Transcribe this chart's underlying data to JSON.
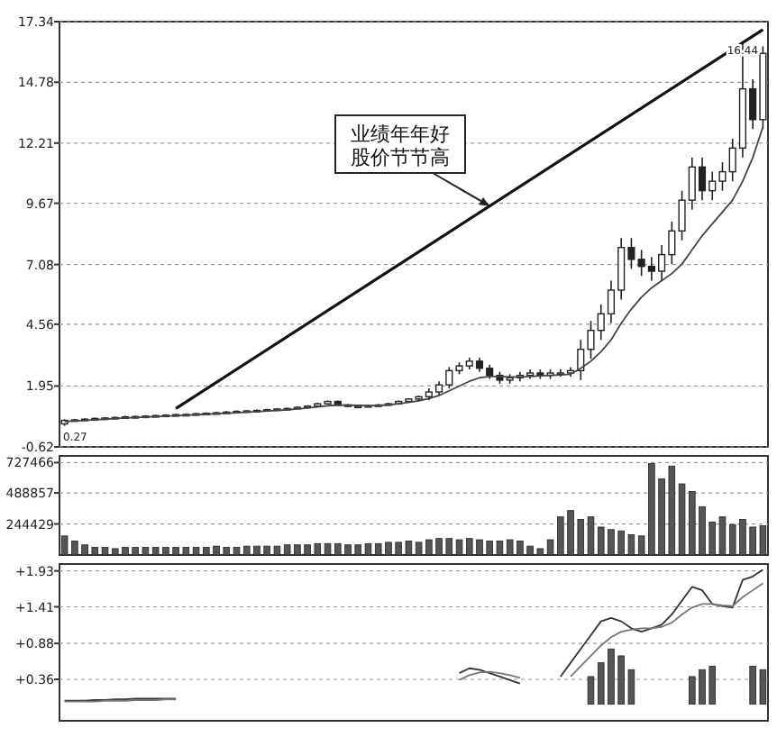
{
  "chart_data": [
    {
      "type": "candlestick",
      "categories": [
        null,
        null,
        null,
        null,
        null,
        null,
        null,
        null,
        null,
        null,
        null,
        null,
        null,
        null,
        null,
        null,
        null,
        null,
        null,
        null,
        null,
        null,
        null,
        null,
        null,
        null,
        null,
        null,
        null,
        null,
        null,
        null,
        null,
        null,
        null,
        null,
        null,
        null,
        null,
        null,
        null,
        null,
        null,
        null,
        null,
        null,
        null,
        null,
        null,
        null,
        null,
        null,
        null,
        null,
        null,
        null,
        null,
        null,
        null,
        null,
        null,
        null,
        null,
        null,
        null,
        null,
        null,
        null,
        null,
        null
      ],
      "ohlc": [
        [
          0.35,
          0.55,
          0.27,
          0.5
        ],
        [
          0.5,
          0.56,
          0.46,
          0.52
        ],
        [
          0.52,
          0.59,
          0.48,
          0.55
        ],
        [
          0.55,
          0.62,
          0.51,
          0.58
        ],
        [
          0.58,
          0.64,
          0.54,
          0.6
        ],
        [
          0.6,
          0.66,
          0.56,
          0.62
        ],
        [
          0.62,
          0.69,
          0.58,
          0.65
        ],
        [
          0.65,
          0.7,
          0.61,
          0.66
        ],
        [
          0.66,
          0.72,
          0.62,
          0.68
        ],
        [
          0.68,
          0.74,
          0.64,
          0.7
        ],
        [
          0.7,
          0.76,
          0.66,
          0.72
        ],
        [
          0.72,
          0.78,
          0.68,
          0.74
        ],
        [
          0.74,
          0.79,
          0.7,
          0.75
        ],
        [
          0.75,
          0.82,
          0.71,
          0.78
        ],
        [
          0.78,
          0.84,
          0.74,
          0.8
        ],
        [
          0.8,
          0.86,
          0.76,
          0.82
        ],
        [
          0.82,
          0.89,
          0.78,
          0.85
        ],
        [
          0.85,
          0.92,
          0.81,
          0.88
        ],
        [
          0.88,
          0.94,
          0.84,
          0.9
        ],
        [
          0.9,
          0.96,
          0.86,
          0.92
        ],
        [
          0.92,
          0.99,
          0.88,
          0.95
        ],
        [
          0.95,
          1.02,
          0.91,
          0.98
        ],
        [
          0.98,
          1.04,
          0.94,
          1.0
        ],
        [
          1.0,
          1.09,
          0.96,
          1.05
        ],
        [
          1.05,
          1.14,
          1.01,
          1.1
        ],
        [
          1.1,
          1.24,
          1.06,
          1.2
        ],
        [
          1.2,
          1.34,
          1.16,
          1.3
        ],
        [
          1.3,
          1.34,
          1.11,
          1.15
        ],
        [
          1.15,
          1.19,
          1.06,
          1.1
        ],
        [
          1.1,
          1.14,
          1.06,
          1.1
        ],
        [
          1.1,
          1.16,
          1.06,
          1.12
        ],
        [
          1.12,
          1.19,
          1.08,
          1.15
        ],
        [
          1.15,
          1.24,
          1.11,
          1.2
        ],
        [
          1.2,
          1.34,
          1.16,
          1.3
        ],
        [
          1.3,
          1.44,
          1.26,
          1.4
        ],
        [
          1.4,
          1.54,
          1.36,
          1.5
        ],
        [
          1.5,
          1.85,
          1.35,
          1.7
        ],
        [
          1.7,
          2.15,
          1.55,
          2.0
        ],
        [
          2.0,
          2.75,
          1.85,
          2.6
        ],
        [
          2.6,
          2.95,
          2.45,
          2.8
        ],
        [
          2.8,
          3.15,
          2.65,
          3.0
        ],
        [
          3.0,
          3.15,
          2.55,
          2.7
        ],
        [
          2.7,
          2.85,
          2.25,
          2.4
        ],
        [
          2.4,
          2.55,
          2.05,
          2.2
        ],
        [
          2.2,
          2.45,
          2.05,
          2.3
        ],
        [
          2.3,
          2.55,
          2.15,
          2.4
        ],
        [
          2.4,
          2.65,
          2.25,
          2.5
        ],
        [
          2.5,
          2.65,
          2.25,
          2.4
        ],
        [
          2.4,
          2.65,
          2.25,
          2.5
        ],
        [
          2.5,
          2.65,
          2.35,
          2.5
        ],
        [
          2.5,
          2.75,
          2.35,
          2.6
        ],
        [
          2.6,
          3.9,
          2.2,
          3.5
        ],
        [
          3.5,
          4.7,
          3.1,
          4.3
        ],
        [
          4.3,
          5.4,
          3.9,
          5.0
        ],
        [
          5.0,
          6.4,
          4.6,
          6.0
        ],
        [
          6.0,
          8.2,
          5.6,
          7.8
        ],
        [
          7.8,
          8.2,
          6.9,
          7.3
        ],
        [
          7.3,
          7.7,
          6.6,
          7.0
        ],
        [
          7.0,
          7.4,
          6.4,
          6.8
        ],
        [
          6.8,
          7.9,
          6.4,
          7.5
        ],
        [
          7.5,
          8.9,
          7.1,
          8.5
        ],
        [
          8.5,
          10.2,
          8.1,
          9.8
        ],
        [
          9.8,
          11.6,
          9.4,
          11.2
        ],
        [
          11.2,
          11.6,
          9.8,
          10.2
        ],
        [
          10.2,
          11.0,
          9.8,
          10.6
        ],
        [
          10.6,
          11.4,
          10.2,
          11.0
        ],
        [
          11.0,
          12.4,
          10.6,
          12.0
        ],
        [
          12.0,
          16.44,
          11.6,
          14.5
        ],
        [
          14.5,
          14.9,
          12.8,
          13.2
        ],
        [
          13.2,
          16.3,
          12.8,
          16.0
        ]
      ],
      "color": "#222222",
      "series": [
        {
          "type": "line",
          "color": "#444444",
          "values": [
            0.45,
            0.48,
            0.5,
            0.53,
            0.55,
            0.58,
            0.6,
            0.62,
            0.64,
            0.66,
            0.68,
            0.7,
            0.72,
            0.74,
            0.76,
            0.78,
            0.8,
            0.82,
            0.85,
            0.87,
            0.9,
            0.92,
            0.95,
            0.98,
            1.02,
            1.07,
            1.12,
            1.14,
            1.14,
            1.13,
            1.12,
            1.13,
            1.15,
            1.2,
            1.26,
            1.33,
            1.42,
            1.55,
            1.75,
            1.95,
            2.15,
            2.3,
            2.35,
            2.35,
            2.33,
            2.33,
            2.35,
            2.38,
            2.4,
            2.42,
            2.45,
            2.7,
            3.0,
            3.4,
            3.9,
            4.6,
            5.2,
            5.7,
            6.1,
            6.4,
            6.7,
            7.1,
            7.7,
            8.3,
            8.8,
            9.3,
            9.8,
            10.6,
            11.6,
            12.9
          ]
        },
        {
          "type": "line",
          "color": "#111111",
          "values": [
            null,
            null,
            null,
            null,
            null,
            null,
            null,
            null,
            null,
            null,
            null,
            1.0,
            null,
            null,
            null,
            null,
            null,
            null,
            null,
            null,
            null,
            null,
            null,
            null,
            null,
            null,
            null,
            null,
            null,
            null,
            null,
            null,
            null,
            null,
            null,
            null,
            null,
            null,
            null,
            null,
            null,
            null,
            null,
            null,
            null,
            null,
            null,
            null,
            null,
            null,
            null,
            null,
            null,
            null,
            null,
            null,
            null,
            null,
            null,
            null,
            null,
            null,
            null,
            null,
            null,
            null,
            null,
            null,
            null,
            17.0
          ]
        }
      ],
      "ylim": [
        -0.62,
        17.34
      ],
      "yticks": [
        -0.62,
        1.95,
        4.56,
        7.08,
        9.67,
        12.21,
        14.78,
        17.34
      ],
      "grid": "y",
      "tick_labels": "y",
      "annotations": [
        "业绩年年好股价节节高",
        {
          "text": "16.44",
          "y": 16.44
        },
        {
          "text": "0.27",
          "y": 0.27
        }
      ]
    },
    {
      "type": "bar",
      "categories": [
        null,
        null,
        null,
        null,
        null,
        null,
        null,
        null,
        null,
        null,
        null,
        null,
        null,
        null,
        null,
        null,
        null,
        null,
        null,
        null,
        null,
        null,
        null,
        null,
        null,
        null,
        null,
        null,
        null,
        null,
        null,
        null,
        null,
        null,
        null,
        null,
        null,
        null,
        null,
        null,
        null,
        null,
        null,
        null,
        null,
        null,
        null,
        null,
        null,
        null,
        null,
        null,
        null,
        null,
        null,
        null,
        null,
        null,
        null,
        null,
        null,
        null,
        null,
        null,
        null,
        null,
        null,
        null,
        null,
        null
      ],
      "values": [
        150000,
        110000,
        80000,
        60000,
        60000,
        50000,
        60000,
        60000,
        60000,
        60000,
        60000,
        60000,
        60000,
        60000,
        60000,
        70000,
        60000,
        60000,
        70000,
        70000,
        70000,
        70000,
        80000,
        80000,
        80000,
        90000,
        90000,
        90000,
        80000,
        80000,
        90000,
        90000,
        100000,
        100000,
        110000,
        100000,
        120000,
        130000,
        130000,
        120000,
        130000,
        120000,
        110000,
        110000,
        120000,
        110000,
        70000,
        50000,
        120000,
        300000,
        350000,
        280000,
        300000,
        220000,
        200000,
        190000,
        160000,
        150000,
        720000,
        600000,
        700000,
        560000,
        500000,
        380000,
        260000,
        300000,
        240000,
        280000,
        220000,
        230000
      ],
      "color": "#555555",
      "ylim": [
        0,
        780000
      ],
      "yticks": [
        244429,
        488857,
        727466
      ],
      "grid": "y",
      "tick_labels": "y"
    },
    {
      "type": "line",
      "categories": [
        null,
        null,
        null,
        null,
        null,
        null,
        null,
        null,
        null,
        null,
        null,
        null,
        null,
        null,
        null,
        null,
        null,
        null,
        null,
        null,
        null,
        null,
        null,
        null,
        null,
        null,
        null,
        null,
        null,
        null,
        null,
        null,
        null,
        null,
        null,
        null,
        null,
        null,
        null,
        null,
        null,
        null,
        null,
        null,
        null,
        null,
        null,
        null,
        null,
        null,
        null,
        null,
        null,
        null,
        null,
        null,
        null,
        null,
        null,
        null,
        null,
        null,
        null,
        null,
        null,
        null,
        null,
        null,
        null,
        null
      ],
      "series": [
        {
          "color": "#333333",
          "values": [
            0.05,
            0.05,
            0.05,
            0.06,
            0.06,
            0.07,
            0.07,
            0.08,
            0.08,
            0.08,
            0.08,
            0.08,
            null,
            null,
            null,
            null,
            null,
            null,
            null,
            null,
            null,
            null,
            null,
            null,
            null,
            null,
            null,
            null,
            null,
            null,
            null,
            null,
            null,
            null,
            null,
            null,
            null,
            null,
            null,
            0.45,
            0.52,
            0.5,
            0.45,
            0.4,
            0.35,
            0.3,
            null,
            null,
            null,
            0.4,
            0.6,
            0.8,
            1.0,
            1.2,
            1.25,
            1.2,
            1.1,
            1.05,
            1.1,
            1.15,
            1.3,
            1.5,
            1.7,
            1.65,
            1.45,
            1.42,
            1.4,
            1.8,
            1.85,
            1.95
          ]
        },
        {
          "color": "#777777",
          "values": [
            0.04,
            0.04,
            0.04,
            0.04,
            0.05,
            0.05,
            0.05,
            0.06,
            0.06,
            0.06,
            0.07,
            0.07,
            null,
            null,
            null,
            null,
            null,
            null,
            null,
            null,
            null,
            null,
            null,
            null,
            null,
            null,
            null,
            null,
            null,
            null,
            null,
            null,
            null,
            null,
            null,
            null,
            null,
            null,
            null,
            0.35,
            0.42,
            0.46,
            0.47,
            0.45,
            0.42,
            0.38,
            null,
            null,
            null,
            null,
            0.4,
            0.55,
            0.7,
            0.85,
            0.97,
            1.05,
            1.08,
            1.1,
            1.1,
            1.12,
            1.18,
            1.3,
            1.4,
            1.45,
            1.45,
            1.43,
            1.42,
            1.55,
            1.65,
            1.75
          ]
        },
        {
          "type": "bar",
          "color": "#555555",
          "values": [
            null,
            null,
            null,
            null,
            null,
            null,
            null,
            null,
            null,
            null,
            null,
            null,
            null,
            null,
            null,
            null,
            null,
            null,
            null,
            null,
            null,
            null,
            null,
            null,
            null,
            null,
            null,
            null,
            null,
            null,
            null,
            null,
            null,
            null,
            null,
            null,
            null,
            null,
            null,
            null,
            null,
            null,
            null,
            null,
            null,
            null,
            null,
            null,
            null,
            null,
            null,
            null,
            0.4,
            0.6,
            0.8,
            0.7,
            0.5,
            null,
            null,
            null,
            null,
            null,
            0.4,
            0.5,
            0.55,
            null,
            null,
            null,
            0.55,
            0.5
          ]
        }
      ],
      "ylim": [
        -0.24,
        2.03
      ],
      "yticks": [
        {
          "value": 0.36,
          "label": "+0.36"
        },
        {
          "value": 0.88,
          "label": "+0.88"
        },
        {
          "value": 1.41,
          "label": "+1.41"
        },
        {
          "value": 1.93,
          "label": "+1.93"
        }
      ],
      "grid": "y",
      "tick_labels": "y"
    }
  ]
}
